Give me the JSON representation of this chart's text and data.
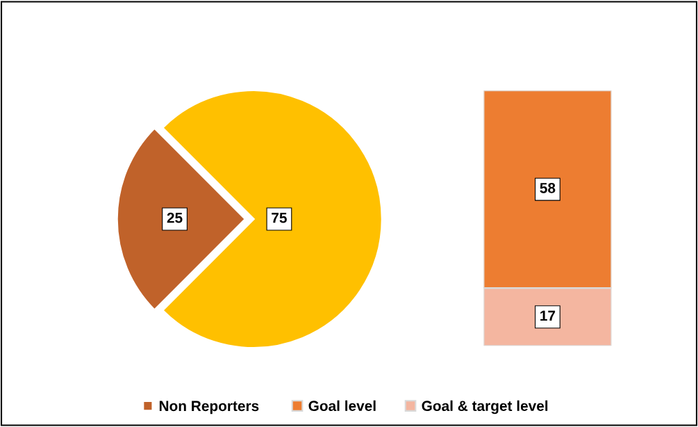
{
  "chart_data": [
    {
      "type": "pie",
      "categories": [
        "Non Reporters",
        null
      ],
      "values": [
        25,
        75
      ],
      "colors": [
        "#c0622a",
        "#ffc000"
      ],
      "data_labels": true,
      "legend": "bottom"
    },
    {
      "type": "bar",
      "stacked": true,
      "categories": [
        null
      ],
      "data_labels": true,
      "legend": "bottom",
      "series": [
        {
          "name": "Goal & target level",
          "color": "#f4b6a0",
          "values": [
            17
          ]
        },
        {
          "name": "Goal level",
          "color": "#ed7d31",
          "values": [
            58
          ]
        }
      ]
    }
  ]
}
